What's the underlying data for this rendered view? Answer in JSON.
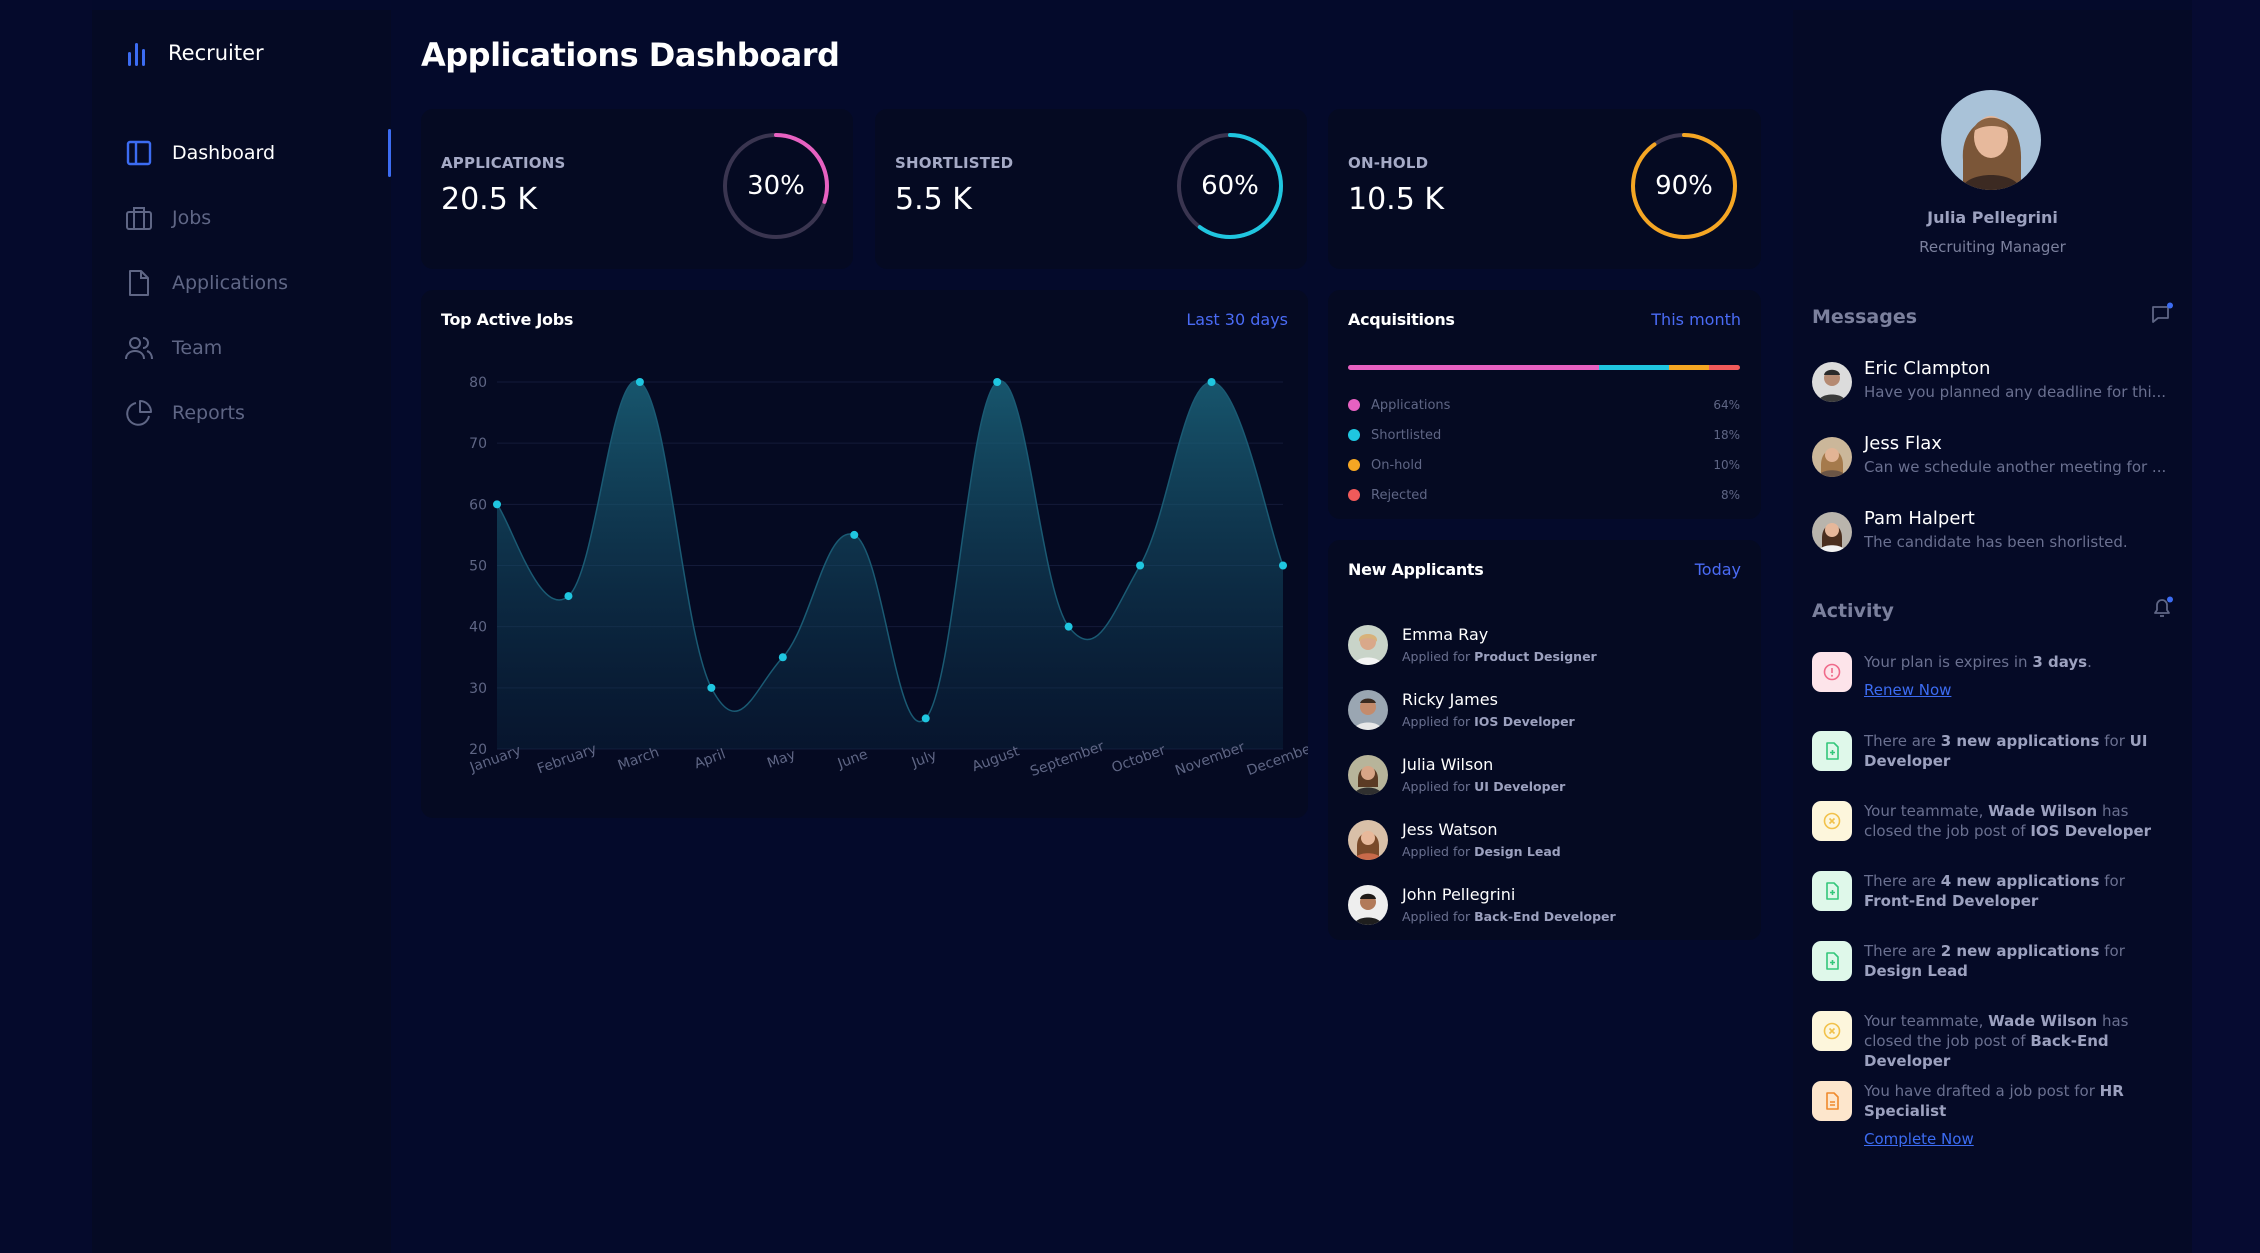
{
  "app": {
    "brand": "Recruiter"
  },
  "nav": [
    {
      "label": "Dashboard",
      "icon": "dashboard-icon",
      "active": true
    },
    {
      "label": "Jobs",
      "icon": "briefcase-icon",
      "active": false
    },
    {
      "label": "Applications",
      "icon": "file-icon",
      "active": false
    },
    {
      "label": "Team",
      "icon": "users-icon",
      "active": false
    },
    {
      "label": "Reports",
      "icon": "pie-chart-icon",
      "active": false
    }
  ],
  "page": {
    "title": "Applications Dashboard"
  },
  "stats": [
    {
      "label": "APPLICATIONS",
      "value": "20.5 K",
      "percent_label": "30%",
      "percent": 30,
      "color": "#e761c1"
    },
    {
      "label": "SHORTLISTED",
      "value": "5.5 K",
      "percent_label": "60%",
      "percent": 60,
      "color": "#1fc6e0"
    },
    {
      "label": "ON-HOLD",
      "value": "10.5 K",
      "percent_label": "90%",
      "percent": 90,
      "color": "#f5a623"
    }
  ],
  "top_jobs": {
    "title": "Top Active Jobs",
    "range": "Last 30 days"
  },
  "chart_data": {
    "type": "area",
    "title": "Top Active Jobs",
    "categories": [
      "January",
      "February",
      "March",
      "April",
      "May",
      "June",
      "July",
      "August",
      "September",
      "October",
      "November",
      "December"
    ],
    "values": [
      60,
      45,
      80,
      30,
      35,
      55,
      25,
      80,
      40,
      50,
      80,
      50
    ],
    "ylim": [
      20,
      80
    ],
    "yticks": [
      20,
      30,
      40,
      50,
      60,
      70,
      80
    ],
    "grid": true,
    "color": "#1fc6e0"
  },
  "acquisitions": {
    "title": "Acquisitions",
    "range": "This month",
    "items": [
      {
        "name": "Applications",
        "pct": "64%",
        "value": 64,
        "color": "#e761c1"
      },
      {
        "name": "Shortlisted",
        "pct": "18%",
        "value": 18,
        "color": "#1fc6e0"
      },
      {
        "name": "On-hold",
        "pct": "10%",
        "value": 10,
        "color": "#f5a623"
      },
      {
        "name": "Rejected",
        "pct": "8%",
        "value": 8,
        "color": "#f05a5a"
      }
    ]
  },
  "new_applicants": {
    "title": "New Applicants",
    "range": "Today",
    "prefix": "Applied for",
    "items": [
      {
        "name": "Emma Ray",
        "role": "Product Designer"
      },
      {
        "name": "Ricky James",
        "role": "IOS Developer"
      },
      {
        "name": "Julia Wilson",
        "role": "UI Developer"
      },
      {
        "name": "Jess Watson",
        "role": "Design Lead"
      },
      {
        "name": "John Pellegrini",
        "role": "Back-End Developer"
      }
    ]
  },
  "profile": {
    "name": "Julia Pellegrini",
    "role": "Recruiting Manager"
  },
  "messages": {
    "title": "Messages",
    "items": [
      {
        "name": "Eric Clampton",
        "text": "Have you planned any deadline for thi..."
      },
      {
        "name": "Jess Flax",
        "text": "Can we schedule another meeting for ..."
      },
      {
        "name": "Pam Halpert",
        "text": "The candidate has been shorlisted."
      }
    ]
  },
  "activity": {
    "title": "Activity",
    "items": [
      {
        "parts": [
          "Your plan is expires in ",
          "3 days",
          "."
        ],
        "link": "Renew Now",
        "icon": "alert-icon"
      },
      {
        "parts": [
          "There are ",
          "3 new applications",
          " for ",
          "UI Developer"
        ],
        "icon": "file-plus-icon"
      },
      {
        "parts": [
          "Your teammate, ",
          "Wade Wilson",
          " has closed the job post of ",
          "IOS Developer"
        ],
        "icon": "close-circle-icon"
      },
      {
        "parts": [
          "There are ",
          "4 new applications",
          " for ",
          "Front-End Developer"
        ],
        "icon": "file-plus-icon"
      },
      {
        "parts": [
          "There are ",
          "2 new applications",
          " for ",
          "Design Lead"
        ],
        "icon": "file-plus-icon"
      },
      {
        "parts": [
          "Your teammate, ",
          "Wade Wilson",
          " has closed the job post of ",
          "Back-End Developer"
        ],
        "icon": "close-circle-icon"
      },
      {
        "parts": [
          "You have drafted a job post for ",
          "HR Specialist"
        ],
        "link": "Complete Now",
        "icon": "file-edit-icon"
      }
    ]
  }
}
